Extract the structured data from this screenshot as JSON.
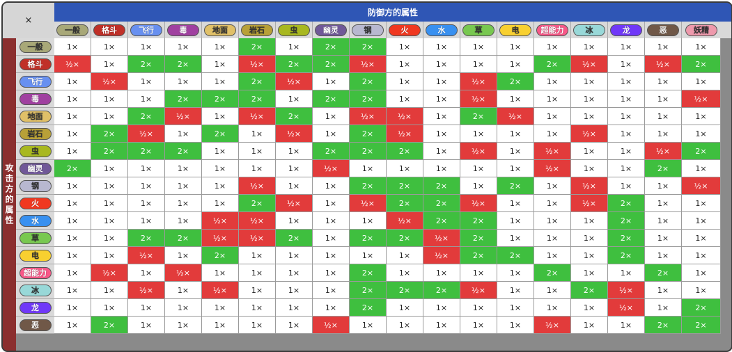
{
  "corner_label": "×",
  "defender_title": "防御方的属性",
  "attacker_title": "攻击方的属性",
  "types": [
    {
      "name": "一般",
      "color": "#a8a878"
    },
    {
      "name": "格斗",
      "color": "#c03028"
    },
    {
      "name": "飞行",
      "color": "#6890f0"
    },
    {
      "name": "毒",
      "color": "#a040a0"
    },
    {
      "name": "地面",
      "color": "#e0c068"
    },
    {
      "name": "岩石",
      "color": "#b8a038"
    },
    {
      "name": "虫",
      "color": "#a8b820"
    },
    {
      "name": "幽灵",
      "color": "#705898"
    },
    {
      "name": "钢",
      "color": "#b8b8d0"
    },
    {
      "name": "火",
      "color": "#f03820"
    },
    {
      "name": "水",
      "color": "#3890f0"
    },
    {
      "name": "草",
      "color": "#78c850"
    },
    {
      "name": "电",
      "color": "#f8d030"
    },
    {
      "name": "超能力",
      "color": "#f85888"
    },
    {
      "name": "冰",
      "color": "#98d8d8"
    },
    {
      "name": "龙",
      "color": "#7038f8"
    },
    {
      "name": "恶",
      "color": "#705848"
    },
    {
      "name": "妖精",
      "color": "#ee99ac"
    }
  ],
  "row_labels": [
    "一般",
    "格斗",
    "飞行",
    "毒",
    "地面",
    "岩石",
    "虫",
    "幽灵",
    "钢",
    "火",
    "水",
    "草",
    "电",
    "超能力",
    "冰",
    "龙",
    "恶"
  ],
  "matrix": [
    [
      "1×",
      "1×",
      "1×",
      "1×",
      "1×",
      "2×",
      "1×",
      "2×",
      "2×",
      "1×",
      "1×",
      "1×",
      "1×",
      "1×",
      "1×",
      "1×",
      "1×",
      "1×"
    ],
    [
      "½×",
      "1×",
      "2×",
      "2×",
      "1×",
      "½×",
      "2×",
      "2×",
      "½×",
      "1×",
      "1×",
      "1×",
      "1×",
      "2×",
      "½×",
      "1×",
      "½×",
      "2×"
    ],
    [
      "1×",
      "½×",
      "1×",
      "1×",
      "1×",
      "2×",
      "½×",
      "1×",
      "2×",
      "1×",
      "1×",
      "½×",
      "2×",
      "1×",
      "1×",
      "1×",
      "1×",
      "1×"
    ],
    [
      "1×",
      "1×",
      "1×",
      "2×",
      "2×",
      "2×",
      "1×",
      "2×",
      "2×",
      "1×",
      "1×",
      "½×",
      "1×",
      "1×",
      "1×",
      "1×",
      "1×",
      "½×"
    ],
    [
      "1×",
      "1×",
      "2×",
      "½×",
      "1×",
      "½×",
      "2×",
      "1×",
      "½×",
      "½×",
      "1×",
      "2×",
      "½×",
      "1×",
      "1×",
      "1×",
      "1×",
      "1×"
    ],
    [
      "1×",
      "2×",
      "½×",
      "1×",
      "2×",
      "1×",
      "½×",
      "1×",
      "2×",
      "½×",
      "1×",
      "1×",
      "1×",
      "1×",
      "½×",
      "1×",
      "1×",
      "1×"
    ],
    [
      "1×",
      "2×",
      "2×",
      "2×",
      "1×",
      "1×",
      "1×",
      "2×",
      "2×",
      "2×",
      "1×",
      "½×",
      "1×",
      "½×",
      "1×",
      "1×",
      "½×",
      "2×"
    ],
    [
      "2×",
      "1×",
      "1×",
      "1×",
      "1×",
      "1×",
      "1×",
      "½×",
      "1×",
      "1×",
      "1×",
      "1×",
      "1×",
      "½×",
      "1×",
      "1×",
      "2×",
      "1×"
    ],
    [
      "1×",
      "1×",
      "1×",
      "1×",
      "1×",
      "½×",
      "1×",
      "1×",
      "2×",
      "2×",
      "2×",
      "1×",
      "2×",
      "1×",
      "½×",
      "1×",
      "1×",
      "½×"
    ],
    [
      "1×",
      "1×",
      "1×",
      "1×",
      "1×",
      "2×",
      "½×",
      "1×",
      "½×",
      "2×",
      "2×",
      "½×",
      "1×",
      "1×",
      "½×",
      "2×",
      "1×",
      "1×"
    ],
    [
      "1×",
      "1×",
      "1×",
      "1×",
      "½×",
      "½×",
      "1×",
      "1×",
      "1×",
      "½×",
      "2×",
      "2×",
      "1×",
      "1×",
      "1×",
      "2×",
      "1×",
      "1×"
    ],
    [
      "1×",
      "1×",
      "2×",
      "2×",
      "½×",
      "½×",
      "2×",
      "1×",
      "2×",
      "2×",
      "½×",
      "2×",
      "1×",
      "1×",
      "1×",
      "2×",
      "1×",
      "1×"
    ],
    [
      "1×",
      "1×",
      "½×",
      "1×",
      "2×",
      "1×",
      "1×",
      "1×",
      "1×",
      "1×",
      "½×",
      "2×",
      "2×",
      "1×",
      "1×",
      "2×",
      "1×",
      "1×"
    ],
    [
      "1×",
      "½×",
      "1×",
      "½×",
      "1×",
      "1×",
      "1×",
      "1×",
      "2×",
      "1×",
      "1×",
      "1×",
      "1×",
      "2×",
      "1×",
      "1×",
      "2×",
      "1×"
    ],
    [
      "1×",
      "1×",
      "½×",
      "1×",
      "½×",
      "1×",
      "1×",
      "1×",
      "2×",
      "2×",
      "2×",
      "½×",
      "1×",
      "1×",
      "2×",
      "½×",
      "1×",
      "1×"
    ],
    [
      "1×",
      "1×",
      "1×",
      "1×",
      "1×",
      "1×",
      "1×",
      "1×",
      "2×",
      "1×",
      "1×",
      "1×",
      "1×",
      "1×",
      "1×",
      "½×",
      "1×",
      "2×"
    ],
    [
      "1×",
      "2×",
      "1×",
      "1×",
      "1×",
      "1×",
      "1×",
      "½×",
      "1×",
      "1×",
      "1×",
      "1×",
      "1×",
      "½×",
      "1×",
      "1×",
      "2×",
      "2×"
    ]
  ]
}
